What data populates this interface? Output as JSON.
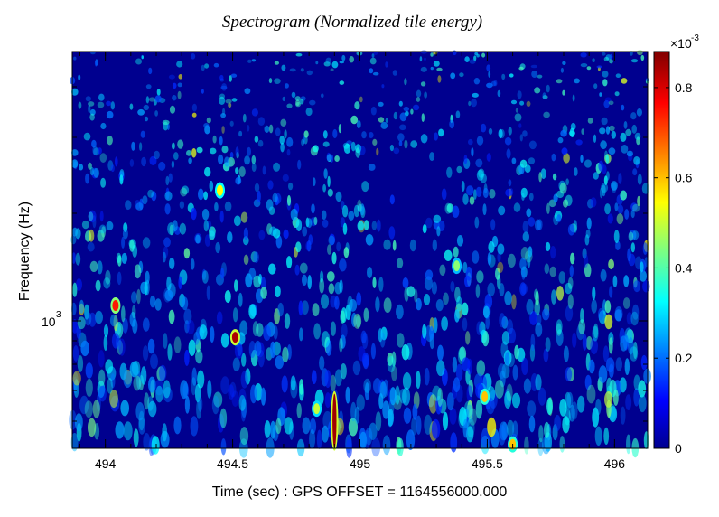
{
  "chart_data": {
    "type": "heatmap",
    "title": "Spectrogram (Normalized tile energy)",
    "xlabel": "Time (sec) : GPS OFFSET = 1164556000.000",
    "ylabel": "Frequency (Hz)",
    "xlim": [
      493.87,
      496.13
    ],
    "x_ticks": [
      494,
      494.5,
      495,
      495.5,
      496
    ],
    "x_tick_labels": [
      "494",
      "494.5",
      "495",
      "495.5",
      "496"
    ],
    "y_scale": "log",
    "y_tick_labels": [
      {
        "base": "10",
        "exp": "3"
      }
    ],
    "colorbar": {
      "colormap": "jet",
      "range": [
        0,
        0.00088
      ],
      "multiplier": {
        "prefix": "×10",
        "exp": "-3"
      },
      "ticks": [
        0,
        0.2,
        0.4,
        0.6,
        0.8
      ],
      "tick_labels": [
        "0",
        "0.2",
        "0.4",
        "0.6",
        "0.8"
      ]
    },
    "background_level": 6e-05,
    "hotspots": [
      {
        "time": 494.9,
        "freq_pos": 0.01,
        "value": 0.00085,
        "label": "vertical streak"
      },
      {
        "time": 494.51,
        "freq_pos": 0.28,
        "value": 0.00084,
        "label": "bright spot"
      },
      {
        "time": 494.04,
        "freq_pos": 0.36,
        "value": 0.00075,
        "label": "spot"
      },
      {
        "time": 494.45,
        "freq_pos": 0.65,
        "value": 0.00055,
        "label": "spot"
      },
      {
        "time": 495.49,
        "freq_pos": 0.13,
        "value": 0.0006,
        "label": "spot"
      },
      {
        "time": 495.6,
        "freq_pos": 0.01,
        "value": 0.0006,
        "label": "spot"
      },
      {
        "time": 494.83,
        "freq_pos": 0.1,
        "value": 0.0005,
        "label": "spot"
      },
      {
        "time": 495.38,
        "freq_pos": 0.46,
        "value": 0.00045,
        "label": "spot"
      }
    ],
    "grid": false,
    "legend": "colorbar-right"
  }
}
